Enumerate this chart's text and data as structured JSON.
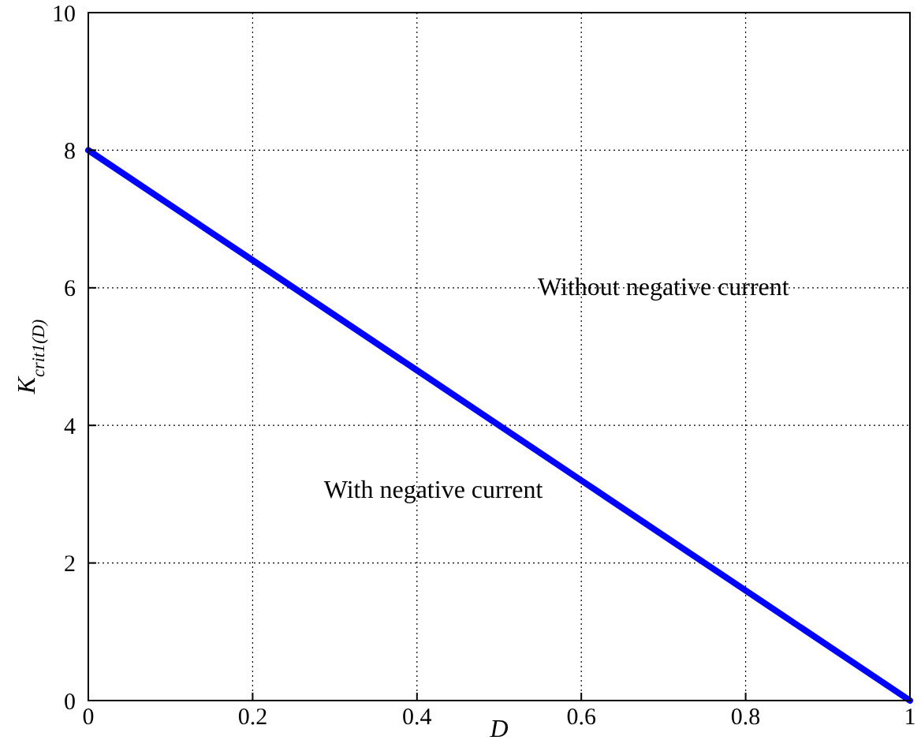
{
  "chart_data": {
    "type": "line",
    "xlabel": "D",
    "ylabel": "K$_{crit1(D)}$",
    "x": [
      0,
      0.2,
      0.4,
      0.6,
      0.8,
      1
    ],
    "series": [
      {
        "color": "#0000ff",
        "values": [
          8,
          6.4,
          4.8,
          3.2,
          1.6,
          0
        ]
      }
    ],
    "xlim": [
      0,
      1
    ],
    "ylim": [
      0,
      10
    ],
    "xticks": [
      0,
      0.2,
      0.4,
      0.6,
      0.8,
      1
    ],
    "yticks": [
      0,
      2,
      4,
      6,
      8,
      10
    ],
    "grid": true,
    "line_style": "solid",
    "annotations": [
      "Without negative current",
      "With negative current"
    ]
  }
}
